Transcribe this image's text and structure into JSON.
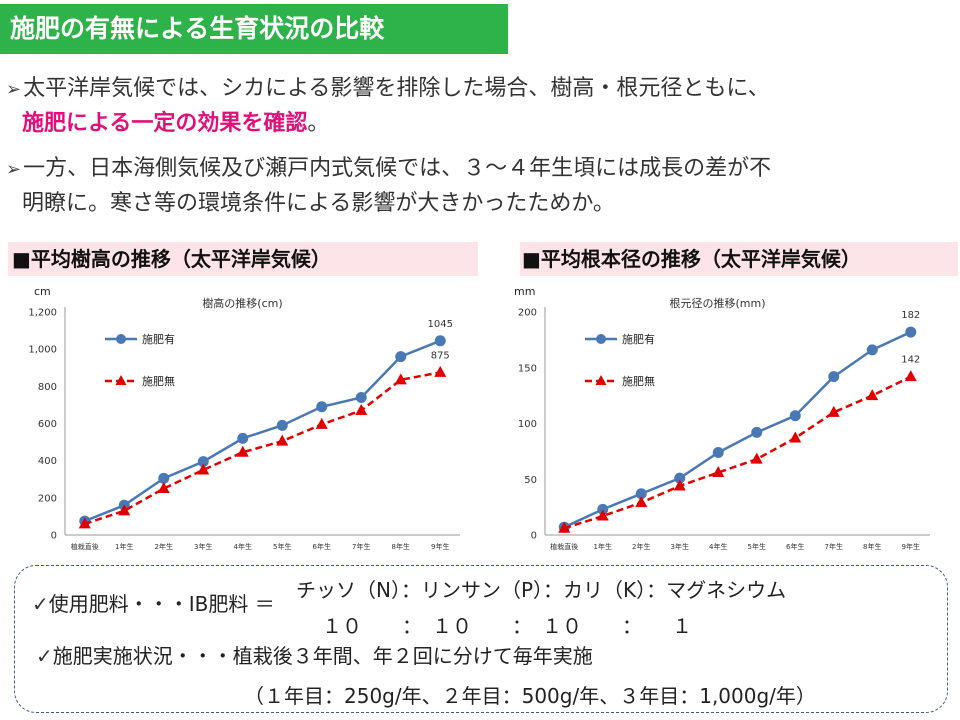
{
  "title": "施肥の有無による生育状況の比較",
  "bullets": [
    {
      "arrow": "➢",
      "text1": "太平洋岸気候では、シカによる影響を排除した場合、樹高・根元径ともに、",
      "emph": "施肥による一定の効果を確認",
      "end": "。"
    },
    {
      "arrow": "➢",
      "text1": "一方、日本海側気候及び瀬戸内式気候では、３～４年生頃には成長の差が不",
      "text2": "明瞭に。寒さ等の環境条件による影響が大きかったためか。"
    }
  ],
  "sections": {
    "left": "■平均樹高の推移（太平洋岸気候）",
    "right": "■平均根本径の推移（太平洋岸気候）"
  },
  "chart_data": [
    {
      "type": "line",
      "title": "樹高の推移(cm)",
      "unit": "cm",
      "categories": [
        "植栽直後",
        "1年生",
        "2年生",
        "3年生",
        "4年生",
        "5年生",
        "6年生",
        "7年生",
        "8年生",
        "9年生"
      ],
      "ylim": [
        0,
        1200
      ],
      "yticks": [
        "0",
        "200",
        "400",
        "600",
        "800",
        "1,000",
        "1,200"
      ],
      "series": [
        {
          "name": "施肥有",
          "color": "#4a78b5",
          "marker": "circle",
          "dash": false,
          "values": [
            75,
            160,
            305,
            395,
            520,
            590,
            690,
            740,
            960,
            1045
          ]
        },
        {
          "name": "施肥無",
          "color": "#e00000",
          "marker": "triangle",
          "dash": true,
          "values": [
            60,
            130,
            250,
            350,
            445,
            505,
            595,
            670,
            835,
            875
          ]
        }
      ],
      "data_labels": [
        {
          "series": 0,
          "index": 9,
          "text": "1045"
        },
        {
          "series": 1,
          "index": 9,
          "text": "875"
        }
      ]
    },
    {
      "type": "line",
      "title": "根元径の推移(mm)",
      "unit": "mm",
      "categories": [
        "植栽直後",
        "1年生",
        "2年生",
        "3年生",
        "4年生",
        "5年生",
        "6年生",
        "7年生",
        "8年生",
        "9年生"
      ],
      "ylim": [
        0,
        200
      ],
      "yticks": [
        "0",
        "50",
        "100",
        "150",
        "200"
      ],
      "series": [
        {
          "name": "施肥有",
          "color": "#4a78b5",
          "marker": "circle",
          "dash": false,
          "values": [
            7,
            23,
            37,
            51,
            74,
            92,
            107,
            142,
            166,
            182
          ]
        },
        {
          "name": "施肥無",
          "color": "#e00000",
          "marker": "triangle",
          "dash": true,
          "values": [
            6,
            17,
            29,
            44,
            56,
            68,
            87,
            110,
            125,
            142
          ]
        }
      ],
      "data_labels": [
        {
          "series": 0,
          "index": 9,
          "text": "182"
        },
        {
          "series": 1,
          "index": 9,
          "text": "142"
        }
      ]
    }
  ],
  "info": {
    "check": "✓",
    "line1_label": "使用肥料・・・IB肥料 ＝",
    "line1_top": "チッソ（N）：リンサン（P）：カリ（K）：マグネシウム",
    "line1_bottom": "１０　　：　１０　　：　１０　　：　　１",
    "line2": "施肥実施状況・・・植栽後３年間、年２回に分けて毎年実施",
    "line3": "（１年目：250g/年、２年目：500g/年、３年目：1,000g/年）"
  }
}
